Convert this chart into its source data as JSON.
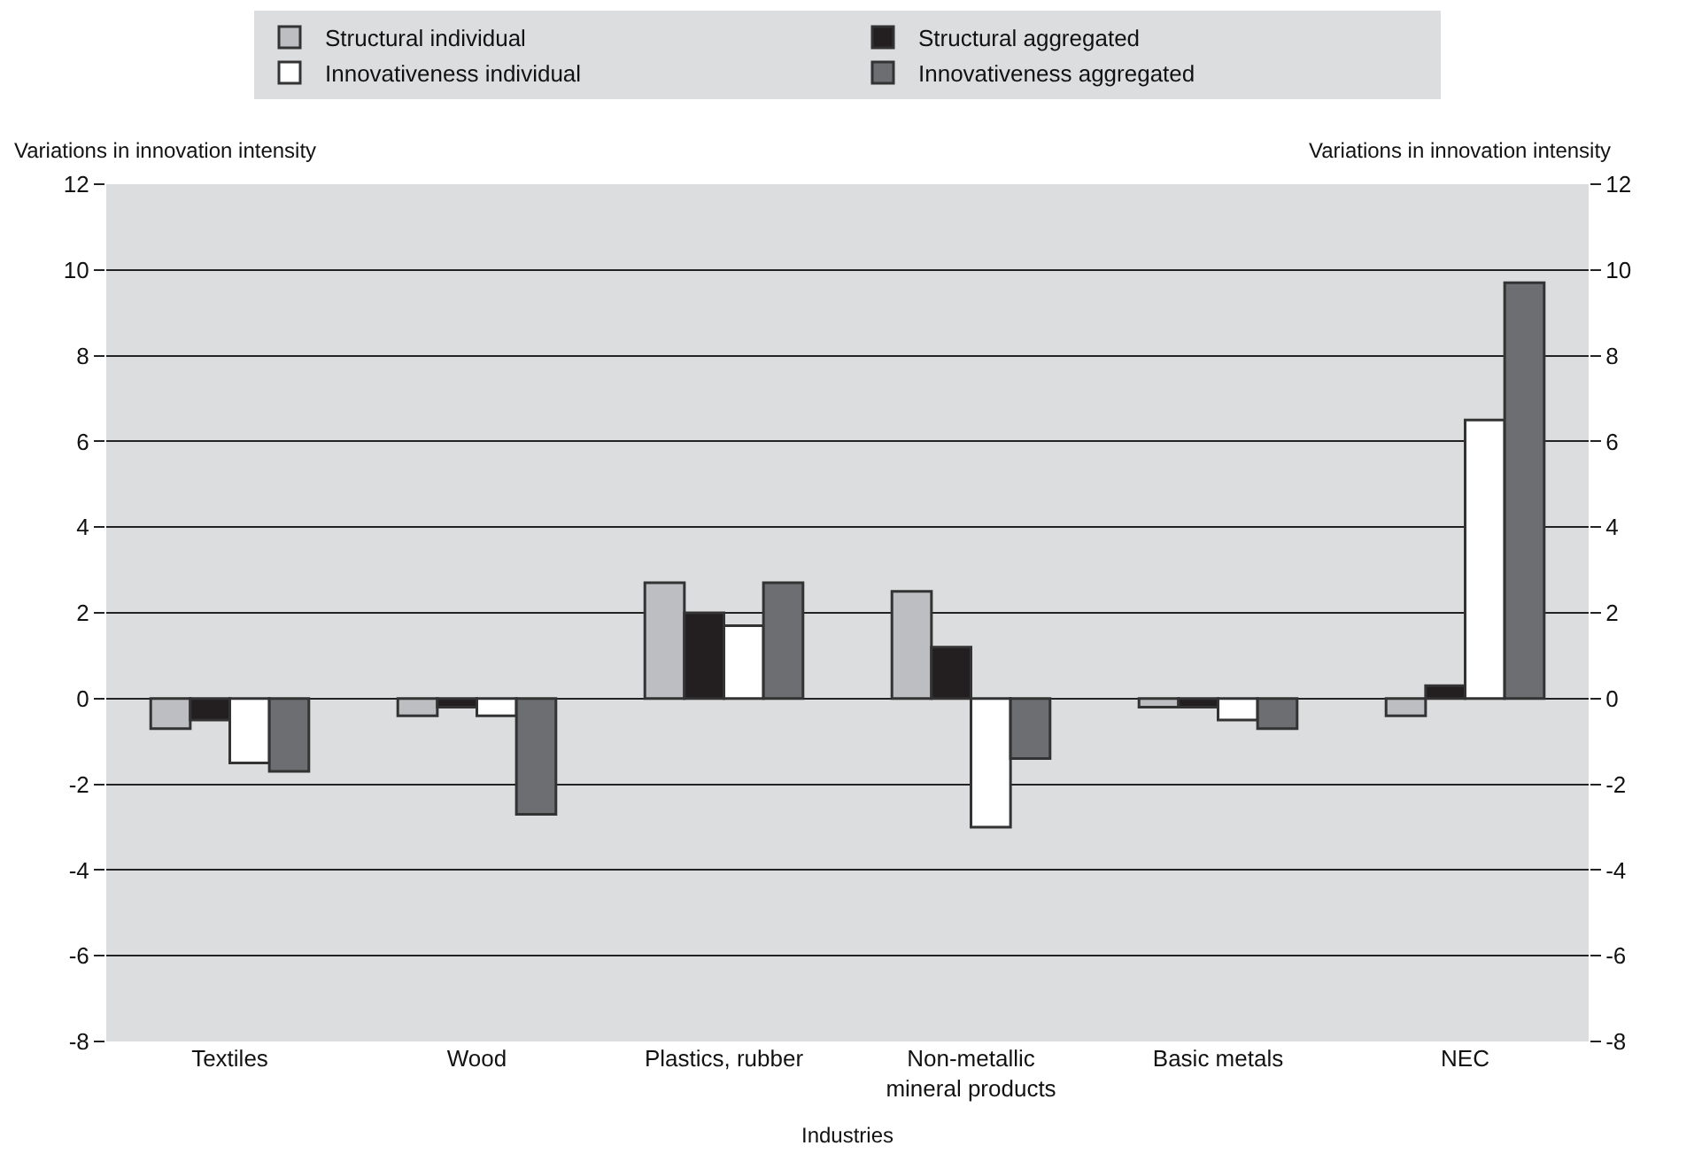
{
  "chart_data": {
    "type": "bar",
    "categories": [
      "Textiles",
      "Wood",
      "Plastics, rubber",
      "Non-metallic\nmineral products",
      "Basic metals",
      "NEC"
    ],
    "series": [
      {
        "name": "Structural individual",
        "color": "#bdbec2",
        "values": [
          -0.7,
          -0.4,
          2.7,
          2.5,
          -0.2,
          -0.4
        ]
      },
      {
        "name": "Structural aggregated",
        "color": "#231f20",
        "values": [
          -0.5,
          -0.2,
          2.0,
          1.2,
          -0.2,
          0.3
        ]
      },
      {
        "name": "Innovativeness individual",
        "color": "#ffffff",
        "values": [
          -1.5,
          -0.4,
          1.7,
          -3.0,
          -0.5,
          6.5
        ]
      },
      {
        "name": "Innovativeness aggregated",
        "color": "#6d6e71",
        "values": [
          -1.7,
          -2.7,
          2.7,
          -1.4,
          -0.7,
          9.7
        ]
      }
    ],
    "xlabel": "Industries",
    "ylabel": "Variations in innovation intensity",
    "y2label": "Variations in innovation intensity",
    "ylim": [
      -8,
      12
    ],
    "yticks": [
      -8,
      -6,
      -4,
      -2,
      0,
      2,
      4,
      6,
      8,
      10,
      12
    ],
    "y2lim": [
      -8,
      12
    ],
    "y2ticks": [
      -8,
      -6,
      -4,
      -2,
      0,
      2,
      4,
      6,
      8,
      10,
      12
    ],
    "grid": "y",
    "legend": "top"
  }
}
